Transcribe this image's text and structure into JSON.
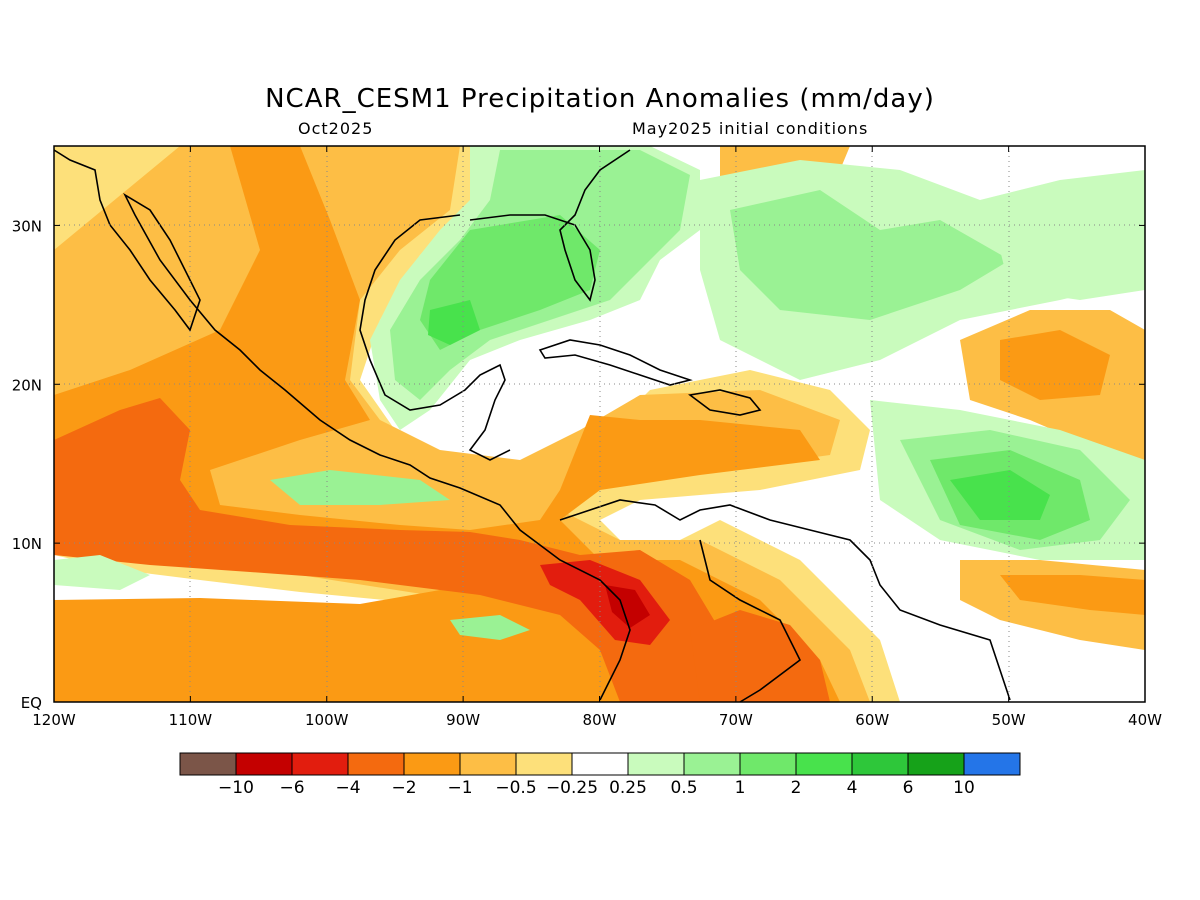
{
  "title": "NCAR_CESM1 Precipitation Anomalies (mm/day)",
  "subtitle_left": "Oct2025",
  "subtitle_right": "May2025 initial conditions",
  "map": {
    "lon_range": [
      -120,
      -40
    ],
    "lat_range": [
      0,
      35
    ],
    "lon_ticks": [
      {
        "value": -120,
        "label": "120W"
      },
      {
        "value": -110,
        "label": "110W"
      },
      {
        "value": -100,
        "label": "100W"
      },
      {
        "value": -90,
        "label": "90W"
      },
      {
        "value": -80,
        "label": "80W"
      },
      {
        "value": -70,
        "label": "70W"
      },
      {
        "value": -60,
        "label": "60W"
      },
      {
        "value": -50,
        "label": "50W"
      },
      {
        "value": -40,
        "label": "40W"
      }
    ],
    "lat_ticks": [
      {
        "value": 0,
        "label": "EQ"
      },
      {
        "value": 10,
        "label": "10N"
      },
      {
        "value": 20,
        "label": "20N"
      },
      {
        "value": 30,
        "label": "30N"
      }
    ],
    "grid": "dotted"
  },
  "colorbar": {
    "colors": [
      "#7b5548",
      "#c40000",
      "#e21d0e",
      "#f46a0f",
      "#fb9a14",
      "#fdbe45",
      "#fde07a",
      "#ffffff",
      "#c9fbbd",
      "#9af294",
      "#6fe86a",
      "#48e24c",
      "#2ec73a",
      "#16a219",
      "#2475e8"
    ],
    "labels": [
      "−10",
      "−6",
      "−4",
      "−2",
      "−1",
      "−0.5",
      "−0.25",
      "0.25",
      "0.5",
      "1",
      "2",
      "4",
      "6",
      "10"
    ]
  }
}
